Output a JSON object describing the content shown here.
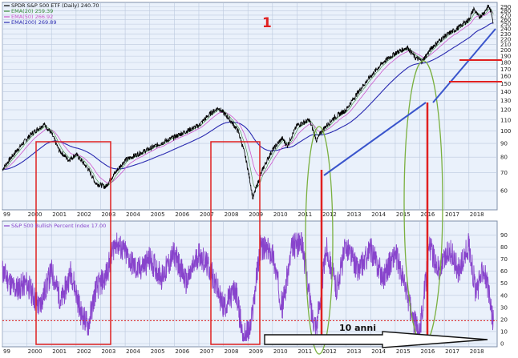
{
  "chart_data": [
    {
      "type": "line",
      "panel": "price",
      "legend": [
        {
          "text": "SPDR S&P 500 ETF (Daily) 240.70",
          "color": "#000000"
        },
        {
          "text": "EMA(20) 259.39",
          "color": "#3a8a3a"
        },
        {
          "text": "EMA(50) 266.92",
          "color": "#cc55cc"
        },
        {
          "text": "EMA(200) 269.89",
          "color": "#2a2ab0"
        }
      ],
      "annotation_number": "1",
      "x_ticks": [
        "99",
        "2000",
        "2001",
        "2002",
        "2003",
        "2004",
        "2005",
        "2006",
        "2007",
        "2008",
        "2009",
        "2010",
        "2011",
        "2012",
        "2013",
        "2014",
        "2015",
        "2016",
        "2017",
        "2018"
      ],
      "y_ticks": [
        290,
        280,
        270,
        260,
        250,
        240,
        230,
        220,
        210,
        200,
        190,
        180,
        170,
        160,
        150,
        140,
        130,
        120,
        110,
        100,
        90,
        80,
        70,
        60
      ],
      "y_scale": "log",
      "ylim": [
        52,
        295
      ],
      "grid": true,
      "anchors": [
        {
          "x": 1999.0,
          "y": 72
        },
        {
          "x": 1999.6,
          "y": 85
        },
        {
          "x": 2000.2,
          "y": 98
        },
        {
          "x": 2000.7,
          "y": 106
        },
        {
          "x": 2001.0,
          "y": 98
        },
        {
          "x": 2001.3,
          "y": 85
        },
        {
          "x": 2001.7,
          "y": 78
        },
        {
          "x": 2002.0,
          "y": 82
        },
        {
          "x": 2002.5,
          "y": 72
        },
        {
          "x": 2002.8,
          "y": 64
        },
        {
          "x": 2003.2,
          "y": 62
        },
        {
          "x": 2003.6,
          "y": 70
        },
        {
          "x": 2004.0,
          "y": 78
        },
        {
          "x": 2005.0,
          "y": 86
        },
        {
          "x": 2006.0,
          "y": 95
        },
        {
          "x": 2007.0,
          "y": 105
        },
        {
          "x": 2007.5,
          "y": 117
        },
        {
          "x": 2007.8,
          "y": 122
        },
        {
          "x": 2008.2,
          "y": 112
        },
        {
          "x": 2008.6,
          "y": 100
        },
        {
          "x": 2008.9,
          "y": 80
        },
        {
          "x": 2009.2,
          "y": 56
        },
        {
          "x": 2009.6,
          "y": 72
        },
        {
          "x": 2010.0,
          "y": 85
        },
        {
          "x": 2010.4,
          "y": 94
        },
        {
          "x": 2010.6,
          "y": 88
        },
        {
          "x": 2011.0,
          "y": 105
        },
        {
          "x": 2011.5,
          "y": 110
        },
        {
          "x": 2011.8,
          "y": 92
        },
        {
          "x": 2012.0,
          "y": 100
        },
        {
          "x": 2012.5,
          "y": 112
        },
        {
          "x": 2013.0,
          "y": 120
        },
        {
          "x": 2013.5,
          "y": 140
        },
        {
          "x": 2014.0,
          "y": 160
        },
        {
          "x": 2014.5,
          "y": 180
        },
        {
          "x": 2015.0,
          "y": 195
        },
        {
          "x": 2015.5,
          "y": 205
        },
        {
          "x": 2015.8,
          "y": 188
        },
        {
          "x": 2016.1,
          "y": 182
        },
        {
          "x": 2016.5,
          "y": 205
        },
        {
          "x": 2017.0,
          "y": 225
        },
        {
          "x": 2017.5,
          "y": 240
        },
        {
          "x": 2018.0,
          "y": 260
        },
        {
          "x": 2018.2,
          "y": 285
        },
        {
          "x": 2018.4,
          "y": 265
        },
        {
          "x": 2018.6,
          "y": 275
        },
        {
          "x": 2018.8,
          "y": 292
        },
        {
          "x": 2018.95,
          "y": 270
        },
        {
          "x": 2019.0,
          "y": 245
        }
      ]
    },
    {
      "type": "line",
      "panel": "indicator",
      "legend": [
        {
          "text": "S&P 500 Bullish Percent Index 17.00",
          "color": "#8844cc"
        }
      ],
      "x_ticks": [
        "99",
        "2000",
        "2001",
        "2002",
        "2003",
        "2004",
        "2005",
        "2006",
        "2007",
        "2008",
        "2009",
        "2010",
        "2011",
        "2012",
        "2013",
        "2014",
        "2015",
        "2016",
        "2017",
        "2018"
      ],
      "y_ticks": [
        90,
        80,
        70,
        60,
        50,
        40,
        30,
        20,
        10,
        0
      ],
      "ylim": [
        0,
        95
      ],
      "grid": true,
      "reference_line": 19,
      "annotation_text": "10 anni",
      "anchors": [
        {
          "x": 1999.0,
          "y": 60
        },
        {
          "x": 1999.5,
          "y": 45
        },
        {
          "x": 2000.0,
          "y": 50
        },
        {
          "x": 2000.5,
          "y": 30
        },
        {
          "x": 2001.0,
          "y": 60
        },
        {
          "x": 2001.4,
          "y": 35
        },
        {
          "x": 2001.8,
          "y": 60
        },
        {
          "x": 2002.2,
          "y": 25
        },
        {
          "x": 2002.5,
          "y": 15
        },
        {
          "x": 2002.8,
          "y": 45
        },
        {
          "x": 2003.2,
          "y": 55
        },
        {
          "x": 2003.6,
          "y": 85
        },
        {
          "x": 2004.0,
          "y": 75
        },
        {
          "x": 2004.5,
          "y": 60
        },
        {
          "x": 2005.0,
          "y": 70
        },
        {
          "x": 2005.5,
          "y": 55
        },
        {
          "x": 2006.0,
          "y": 75
        },
        {
          "x": 2006.5,
          "y": 50
        },
        {
          "x": 2007.0,
          "y": 75
        },
        {
          "x": 2007.5,
          "y": 60
        },
        {
          "x": 2008.0,
          "y": 30
        },
        {
          "x": 2008.5,
          "y": 45
        },
        {
          "x": 2008.8,
          "y": 5
        },
        {
          "x": 2009.1,
          "y": 12
        },
        {
          "x": 2009.5,
          "y": 80
        },
        {
          "x": 2010.0,
          "y": 75
        },
        {
          "x": 2010.4,
          "y": 30
        },
        {
          "x": 2010.8,
          "y": 80
        },
        {
          "x": 2011.2,
          "y": 85
        },
        {
          "x": 2011.6,
          "y": 25
        },
        {
          "x": 2011.8,
          "y": 15
        },
        {
          "x": 2012.2,
          "y": 80
        },
        {
          "x": 2012.6,
          "y": 45
        },
        {
          "x": 2013.0,
          "y": 82
        },
        {
          "x": 2013.5,
          "y": 60
        },
        {
          "x": 2014.0,
          "y": 78
        },
        {
          "x": 2014.5,
          "y": 55
        },
        {
          "x": 2015.0,
          "y": 75
        },
        {
          "x": 2015.5,
          "y": 40
        },
        {
          "x": 2015.7,
          "y": 20
        },
        {
          "x": 2016.0,
          "y": 10
        },
        {
          "x": 2016.4,
          "y": 80
        },
        {
          "x": 2016.8,
          "y": 60
        },
        {
          "x": 2017.2,
          "y": 78
        },
        {
          "x": 2017.6,
          "y": 60
        },
        {
          "x": 2018.0,
          "y": 82
        },
        {
          "x": 2018.3,
          "y": 40
        },
        {
          "x": 2018.6,
          "y": 65
        },
        {
          "x": 2018.9,
          "y": 30
        },
        {
          "x": 2019.0,
          "y": 17
        }
      ]
    }
  ]
}
